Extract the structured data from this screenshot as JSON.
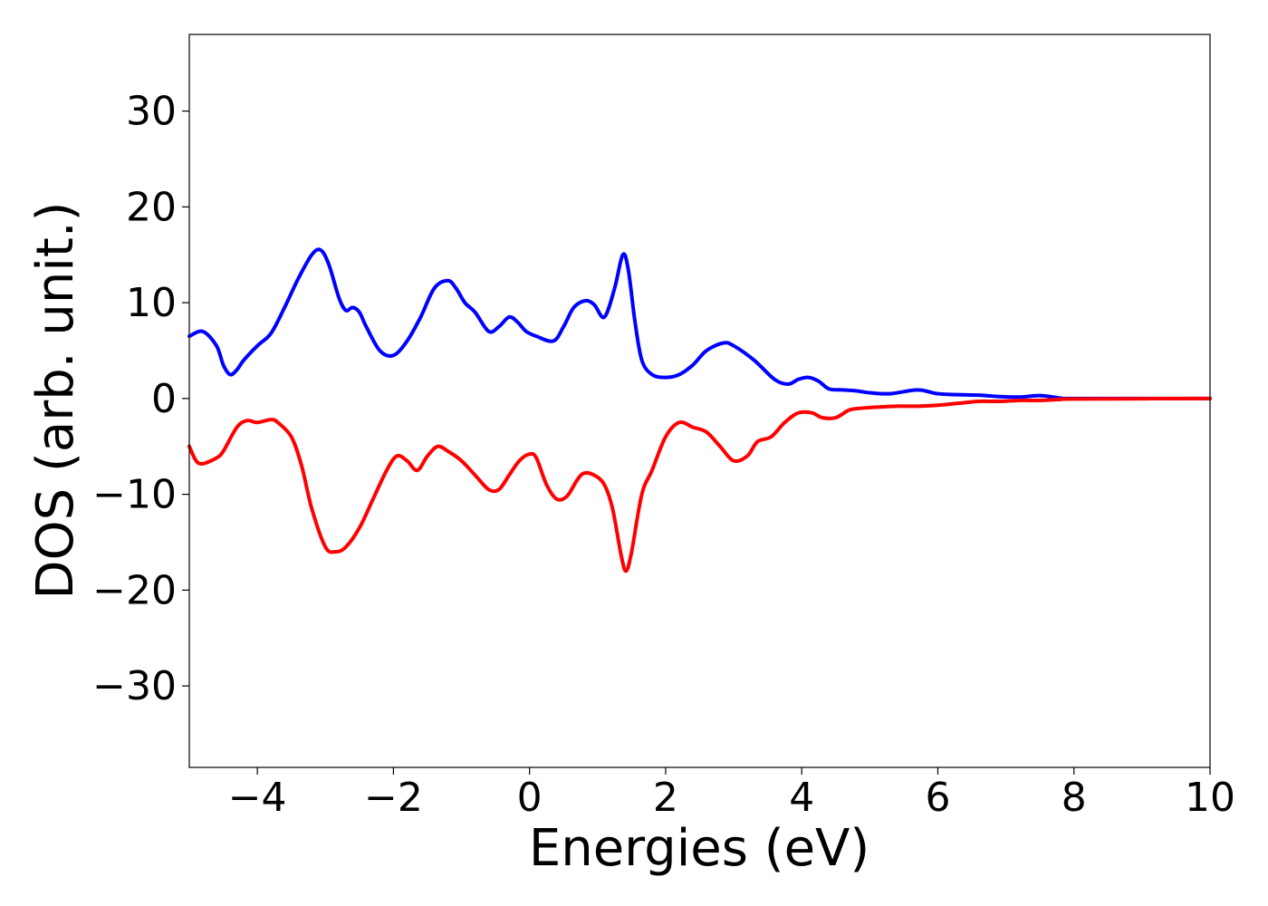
{
  "chart_data": {
    "type": "line",
    "title": "",
    "xlabel": "Energies (eV)",
    "ylabel": "DOS (arb. unit.)",
    "xlim": [
      -5,
      10
    ],
    "ylim": [
      -38.5,
      38
    ],
    "xticks": [
      -4,
      -2,
      0,
      2,
      4,
      6,
      8,
      10
    ],
    "xtick_labels": [
      "−4",
      "−2",
      "0",
      "2",
      "4",
      "6",
      "8",
      "10"
    ],
    "yticks": [
      30,
      20,
      10,
      0,
      -10,
      -20,
      -30
    ],
    "ytick_labels": [
      "30",
      "20",
      "10",
      "0",
      "−10",
      "−20",
      "−30"
    ],
    "grid": false,
    "legend": "none",
    "series": [
      {
        "color": "#0000ff",
        "x": [
          -5.0,
          -4.8,
          -4.6,
          -4.5,
          -4.4,
          -4.3,
          -4.2,
          -4.0,
          -3.8,
          -3.6,
          -3.4,
          -3.2,
          -3.07,
          -2.95,
          -2.8,
          -2.7,
          -2.6,
          -2.5,
          -2.4,
          -2.2,
          -2.0,
          -1.8,
          -1.6,
          -1.4,
          -1.2,
          -1.08,
          -0.95,
          -0.8,
          -0.6,
          -0.45,
          -0.3,
          -0.18,
          -0.05,
          0.1,
          0.35,
          0.5,
          0.65,
          0.82,
          0.95,
          1.1,
          1.25,
          1.37,
          1.45,
          1.55,
          1.65,
          1.8,
          2.0,
          2.2,
          2.4,
          2.6,
          2.85,
          3.0,
          3.3,
          3.6,
          3.8,
          3.95,
          4.1,
          4.25,
          4.4,
          4.6,
          4.8,
          5.0,
          5.3,
          5.7,
          6.0,
          6.3,
          6.6,
          6.9,
          7.2,
          7.5,
          7.8,
          8.0,
          10.0
        ],
        "values": [
          6.5,
          7.0,
          5.5,
          3.5,
          2.5,
          3.0,
          4.0,
          5.5,
          6.8,
          9.5,
          12.5,
          15.0,
          15.5,
          14.0,
          10.5,
          9.2,
          9.5,
          9.0,
          7.5,
          5.0,
          4.5,
          6.0,
          8.5,
          11.5,
          12.3,
          11.5,
          10.0,
          9.0,
          7.0,
          7.5,
          8.5,
          8.0,
          7.0,
          6.5,
          6.0,
          7.5,
          9.5,
          10.2,
          9.8,
          8.5,
          11.5,
          15.0,
          13.5,
          8.0,
          4.0,
          2.5,
          2.2,
          2.5,
          3.5,
          5.0,
          5.8,
          5.5,
          4.0,
          2.0,
          1.5,
          2.0,
          2.2,
          1.8,
          1.0,
          0.9,
          0.8,
          0.6,
          0.5,
          0.9,
          0.5,
          0.4,
          0.35,
          0.2,
          0.15,
          0.3,
          0.05,
          0.0,
          0.0
        ]
      },
      {
        "color": "#ff0000",
        "x": [
          -5.0,
          -4.9,
          -4.8,
          -4.6,
          -4.5,
          -4.3,
          -4.15,
          -4.0,
          -3.8,
          -3.7,
          -3.5,
          -3.35,
          -3.2,
          -3.0,
          -2.85,
          -2.7,
          -2.5,
          -2.3,
          -2.1,
          -1.95,
          -1.8,
          -1.65,
          -1.5,
          -1.35,
          -1.2,
          -1.0,
          -0.8,
          -0.6,
          -0.45,
          -0.3,
          -0.15,
          0.0,
          0.1,
          0.25,
          0.4,
          0.55,
          0.7,
          0.8,
          0.95,
          1.1,
          1.22,
          1.35,
          1.42,
          1.5,
          1.65,
          1.8,
          2.0,
          2.2,
          2.4,
          2.6,
          2.8,
          3.0,
          3.2,
          3.35,
          3.55,
          3.75,
          3.95,
          4.15,
          4.3,
          4.5,
          4.7,
          4.9,
          5.1,
          5.4,
          5.7,
          6.0,
          6.3,
          6.6,
          6.9,
          7.2,
          7.5,
          7.8,
          8.0,
          10.0
        ],
        "values": [
          -5.0,
          -6.5,
          -6.8,
          -6.2,
          -5.5,
          -3.0,
          -2.3,
          -2.5,
          -2.2,
          -2.5,
          -4.0,
          -7.0,
          -11.5,
          -15.5,
          -16.0,
          -15.5,
          -13.5,
          -10.5,
          -7.5,
          -6.0,
          -6.5,
          -7.5,
          -6.0,
          -5.0,
          -5.5,
          -6.5,
          -8.0,
          -9.5,
          -9.5,
          -8.0,
          -6.5,
          -5.8,
          -6.2,
          -9.0,
          -10.5,
          -10.2,
          -8.5,
          -7.8,
          -8.0,
          -9.0,
          -11.5,
          -16.5,
          -18.0,
          -16.0,
          -10.0,
          -7.5,
          -4.0,
          -2.5,
          -3.0,
          -3.5,
          -5.0,
          -6.5,
          -6.0,
          -4.5,
          -4.0,
          -2.5,
          -1.5,
          -1.5,
          -2.0,
          -2.0,
          -1.2,
          -1.0,
          -0.9,
          -0.8,
          -0.8,
          -0.7,
          -0.5,
          -0.3,
          -0.3,
          -0.2,
          -0.2,
          -0.1,
          -0.05,
          0.0
        ]
      }
    ]
  }
}
